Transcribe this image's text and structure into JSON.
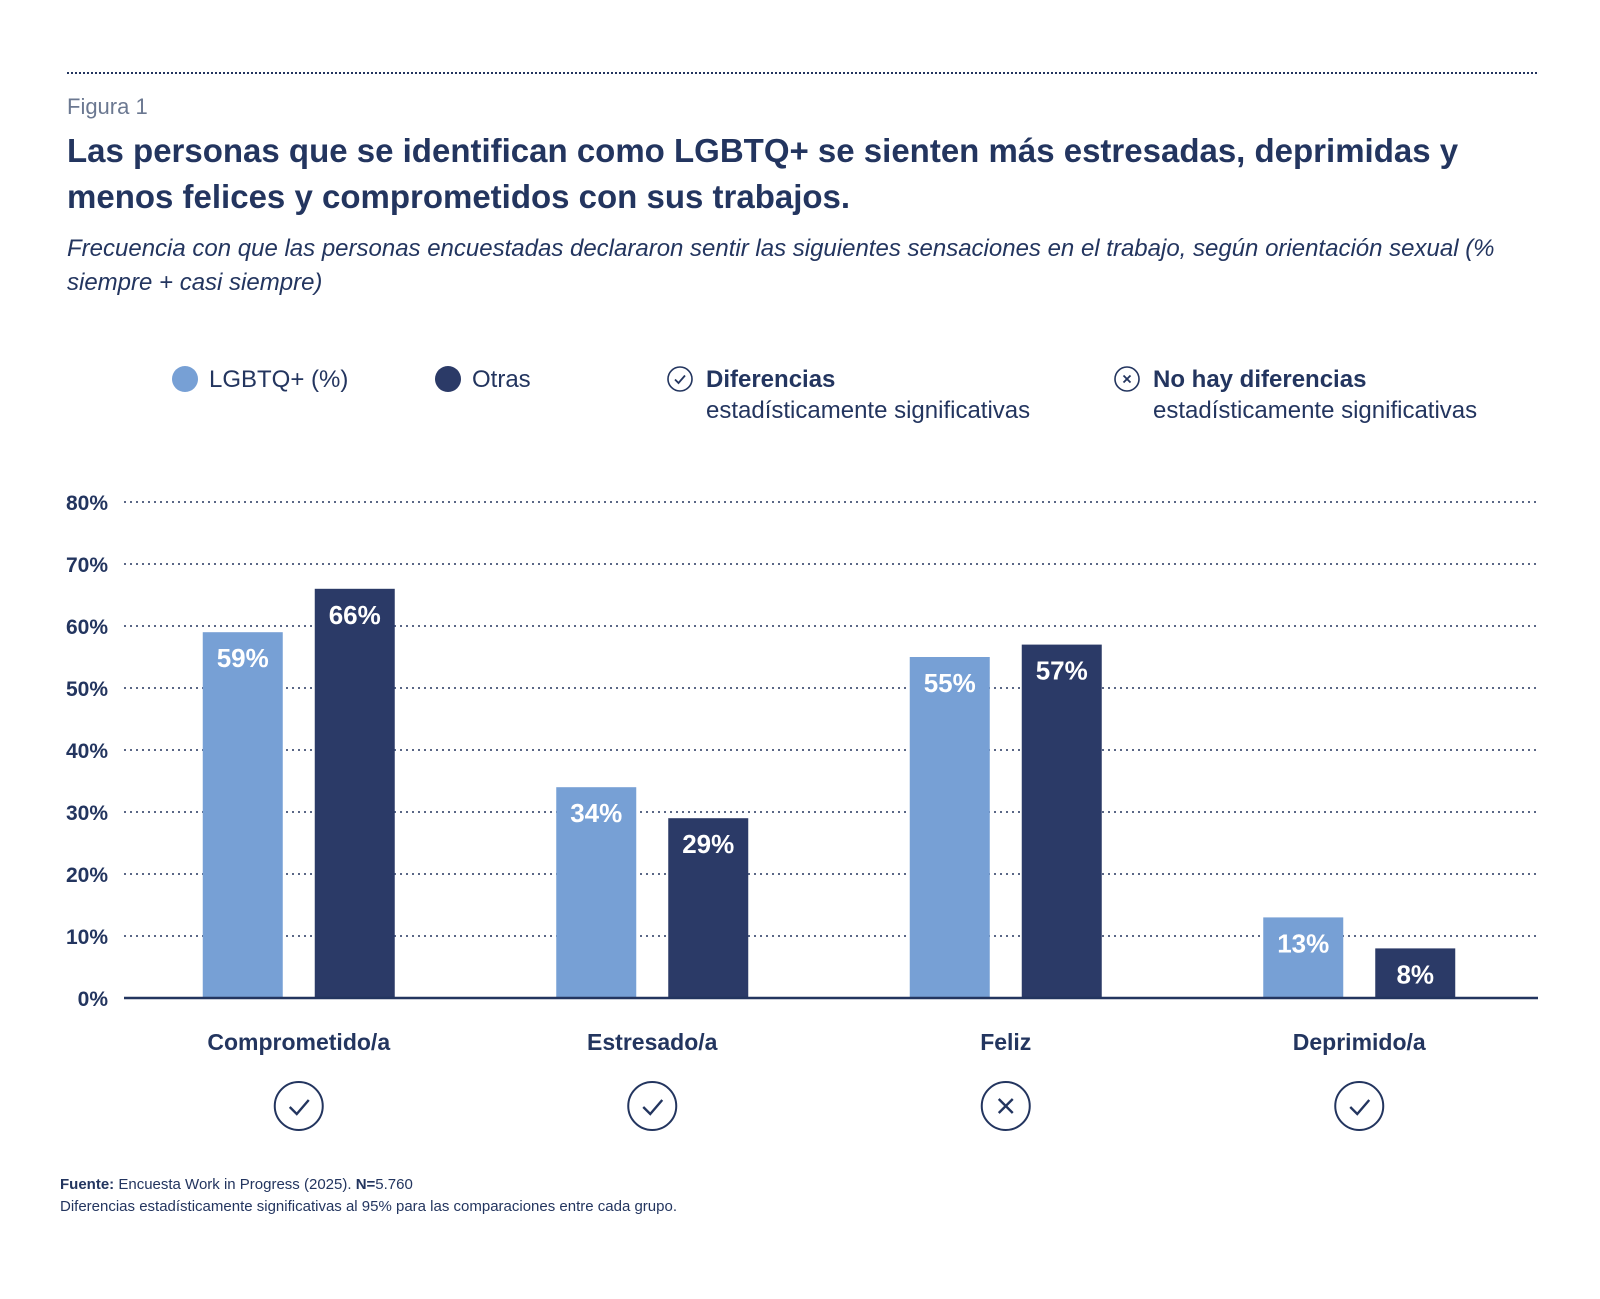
{
  "figure_label": "Figura 1",
  "title": "Las personas que se identifican como LGBTQ+ se sienten más estresadas, deprimidas y menos felices y comprometidos con sus trabajos.",
  "subtitle": "Frecuencia con que las personas encuestadas declararon sentir las siguientes sensaciones en el trabajo, según orientación sexual (% siempre + casi siempre)",
  "legend": {
    "series_a": "LGBTQ+ (%)",
    "series_b": "Otras",
    "significant_strong": "Diferencias",
    "significant_sub": "estadísticamente significativas",
    "not_significant_strong": "No hay diferencias",
    "not_significant_sub": "estadísticamente significativas"
  },
  "colors": {
    "lgbtq": "#77a0d5",
    "otras": "#2b3a67",
    "ink": "#23355f"
  },
  "chart_data": {
    "type": "bar",
    "title": "Las personas que se identifican como LGBTQ+ se sienten más estresadas, deprimidas y menos felices y comprometidos con sus trabajos.",
    "xlabel": "",
    "ylabel": "",
    "ylim": [
      0,
      80
    ],
    "yticks": [
      0,
      10,
      20,
      30,
      40,
      50,
      60,
      70,
      80
    ],
    "ytick_labels": [
      "0%",
      "10%",
      "20%",
      "30%",
      "40%",
      "50%",
      "60%",
      "70%",
      "80%"
    ],
    "grid": true,
    "categories": [
      "Comprometido/a",
      "Estresado/a",
      "Feliz",
      "Deprimido/a"
    ],
    "series": [
      {
        "name": "LGBTQ+ (%)",
        "values": [
          59,
          34,
          55,
          13
        ],
        "labels": [
          "59%",
          "34%",
          "55%",
          "13%"
        ]
      },
      {
        "name": "Otras",
        "values": [
          66,
          29,
          57,
          8
        ],
        "labels": [
          "66%",
          "29%",
          "57%",
          "8%"
        ]
      }
    ],
    "significance": [
      "check-icon",
      "check-icon",
      "x-icon",
      "check-icon"
    ]
  },
  "footer": {
    "source_label": "Fuente:",
    "source_text": "Encuesta Work in Progress (2025).",
    "n_label": "N=",
    "n_value": "5.760",
    "note": "Diferencias estadísticamente significativas al 95% para las comparaciones entre cada grupo."
  }
}
